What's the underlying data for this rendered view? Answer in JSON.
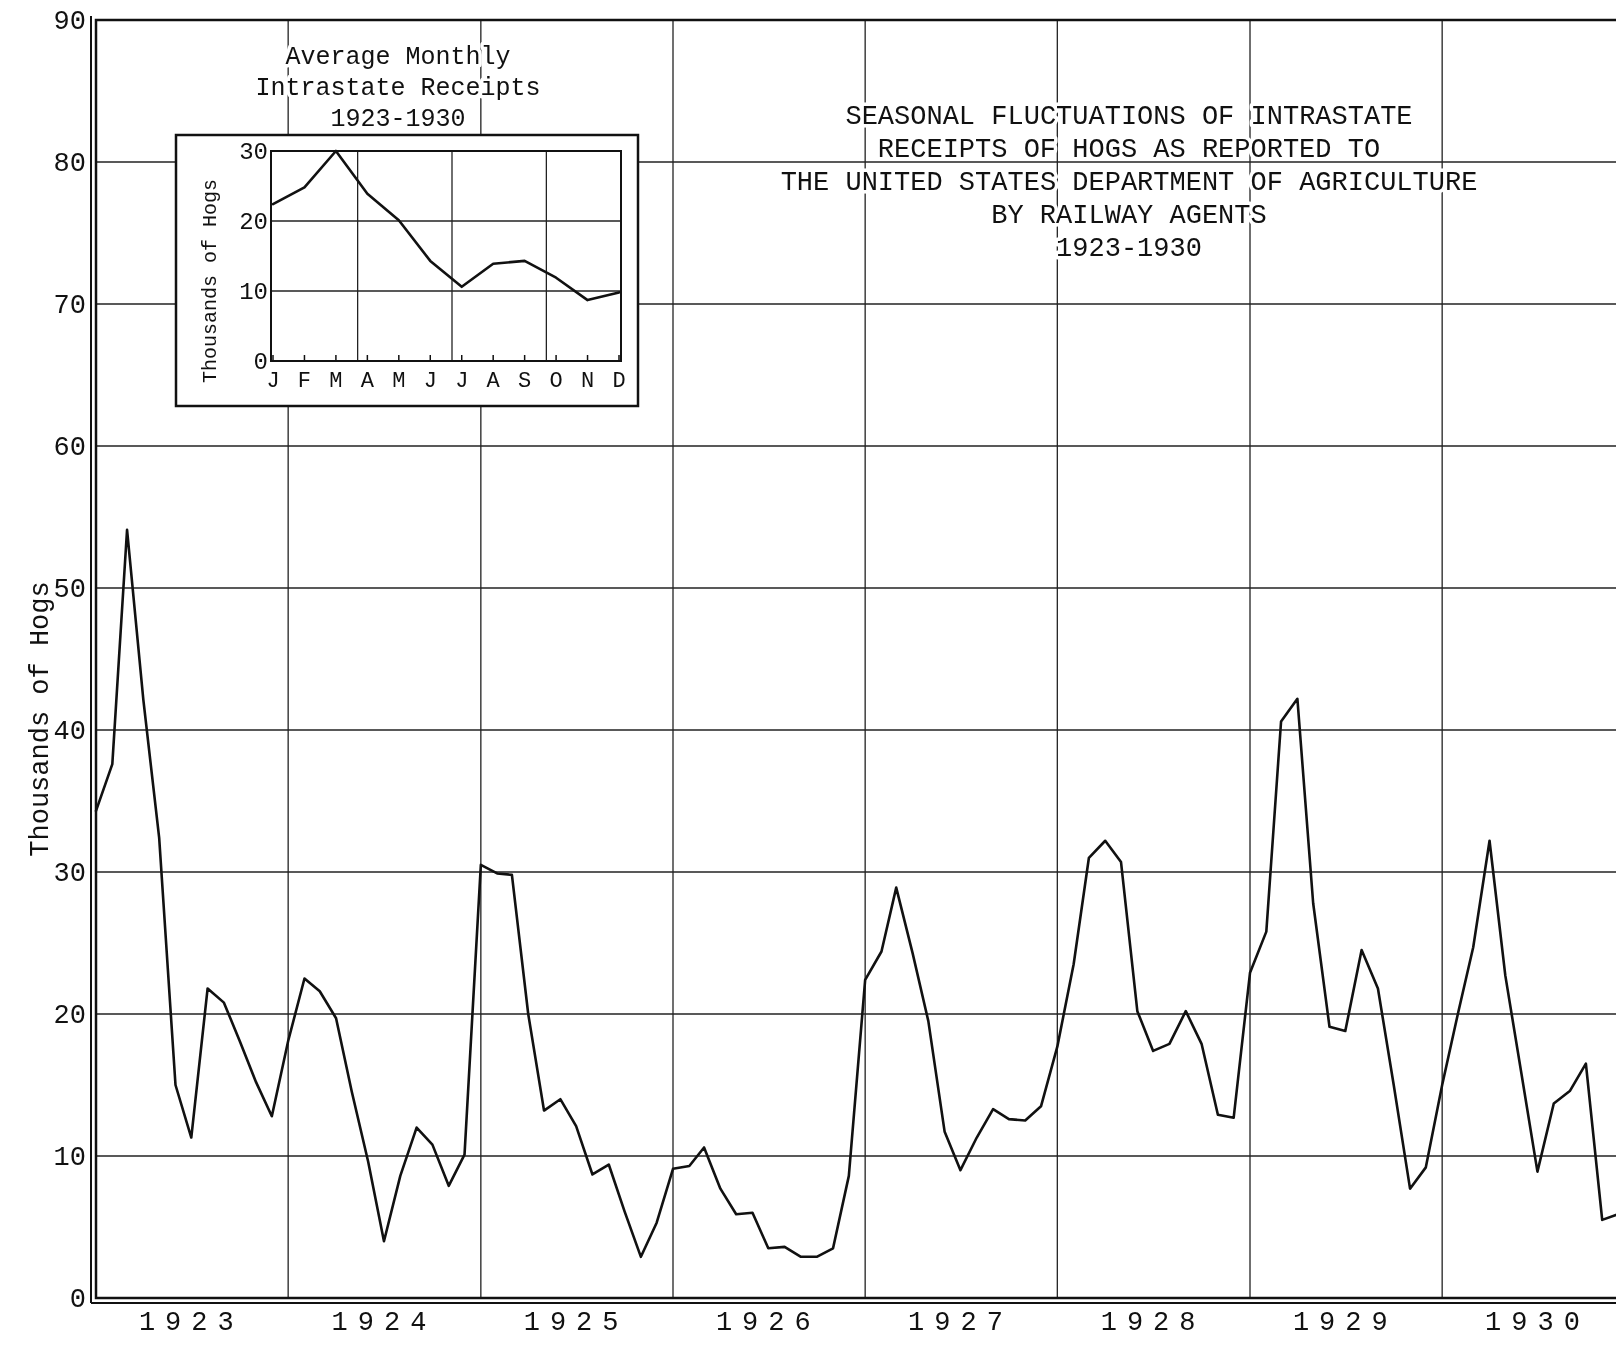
{
  "chart_data": [
    {
      "type": "line",
      "title": "SEASONAL FLUCTUATIONS OF INTRASTATE\nRECEIPTS OF HOGS AS REPORTED TO\nTHE UNITED STATES DEPARTMENT OF AGRICULTURE\nBY RAILWAY AGENTS\n1923-1930",
      "ylabel": "Thousands of Hogs",
      "x": [
        "1923-01",
        "1923-02",
        "1923-03",
        "1923-04",
        "1923-05",
        "1923-06",
        "1923-07",
        "1923-08",
        "1923-09",
        "1923-10",
        "1923-11",
        "1923-12",
        "1924-01",
        "1924-02",
        "1924-03",
        "1924-04",
        "1924-05",
        "1924-06",
        "1924-07",
        "1924-08",
        "1924-09",
        "1924-10",
        "1924-11",
        "1924-12",
        "1925-01",
        "1925-02",
        "1925-03",
        "1925-04",
        "1925-05",
        "1925-06",
        "1925-07",
        "1925-08",
        "1925-09",
        "1925-10",
        "1925-11",
        "1925-12",
        "1926-01",
        "1926-02",
        "1926-03",
        "1926-04",
        "1926-05",
        "1926-06",
        "1926-07",
        "1926-08",
        "1926-09",
        "1926-10",
        "1926-11",
        "1926-12",
        "1927-01",
        "1927-02",
        "1927-03",
        "1927-04",
        "1927-05",
        "1927-06",
        "1927-07",
        "1927-08",
        "1927-09",
        "1927-10",
        "1927-11",
        "1927-12",
        "1928-01",
        "1928-02",
        "1928-03",
        "1928-04",
        "1928-05",
        "1928-06",
        "1928-07",
        "1928-08",
        "1928-09",
        "1928-10",
        "1928-11",
        "1928-12",
        "1929-01",
        "1929-02",
        "1929-03",
        "1929-04",
        "1929-05",
        "1929-06",
        "1929-07",
        "1929-08",
        "1929-09",
        "1929-10",
        "1929-11",
        "1929-12",
        "1930-01",
        "1930-02",
        "1930-03",
        "1930-04",
        "1930-05",
        "1930-06",
        "1930-07",
        "1930-08",
        "1930-09",
        "1930-10",
        "1930-11",
        "1930-12"
      ],
      "series": [
        {
          "color": "#111111",
          "values": [
            34.3,
            37.6,
            54.1,
            42.1,
            32.4,
            15.0,
            11.3,
            21.8,
            20.8,
            18.1,
            15.2,
            12.8,
            18.1,
            22.5,
            21.6,
            19.7,
            14.5,
            9.6,
            4.0,
            8.6,
            12.0,
            10.8,
            7.9,
            10.1,
            30.5,
            29.9,
            29.8,
            20.0,
            13.2,
            14.0,
            12.1,
            8.7,
            9.4,
            6.1,
            2.9,
            5.3,
            9.1,
            9.3,
            10.6,
            7.7,
            5.9,
            6.0,
            3.5,
            3.6,
            2.9,
            2.9,
            3.5,
            8.6,
            22.4,
            24.4,
            28.9,
            24.3,
            19.5,
            11.7,
            9.0,
            11.3,
            13.3,
            12.6,
            12.5,
            13.5,
            17.7,
            23.5,
            31.0,
            32.2,
            30.7,
            20.2,
            17.4,
            17.9,
            20.2,
            17.9,
            12.9,
            12.7,
            22.9,
            25.8,
            40.6,
            42.2,
            27.8,
            19.1,
            18.8,
            24.5,
            21.8,
            15.0,
            7.7,
            9.2,
            15.0,
            20.2,
            24.7,
            32.2,
            22.7,
            15.7,
            8.9,
            13.7,
            14.6,
            16.5,
            5.5,
            5.9
          ]
        }
      ],
      "xlim": [
        "1923-01",
        "1930-12"
      ],
      "xticks": [
        {
          "value": "1923-07",
          "label": "1923"
        },
        {
          "value": "1924-01",
          "label": null
        },
        {
          "value": "1924-07",
          "label": "1924"
        },
        {
          "value": "1925-01",
          "label": null
        },
        {
          "value": "1925-07",
          "label": "1925"
        },
        {
          "value": "1926-01",
          "label": null
        },
        {
          "value": "1926-07",
          "label": "1926"
        },
        {
          "value": "1927-01",
          "label": null
        },
        {
          "value": "1927-07",
          "label": "1927"
        },
        {
          "value": "1928-01",
          "label": null
        },
        {
          "value": "1928-07",
          "label": "1928"
        },
        {
          "value": "1929-01",
          "label": null
        },
        {
          "value": "1929-07",
          "label": "1929"
        },
        {
          "value": "1930-01",
          "label": null
        },
        {
          "value": "1930-07",
          "label": "1930"
        }
      ],
      "ylim": [
        0,
        90
      ],
      "yticks": [
        0,
        10,
        20,
        30,
        40,
        50,
        60,
        70,
        80,
        90
      ],
      "grid": true,
      "marker": "none",
      "line_style": "solid"
    },
    {
      "type": "line",
      "title": "Average Monthly\nIntrastate Receipts\n1923-1930",
      "ylabel": "Thousands of Hogs",
      "categories": [
        "J",
        "F",
        "M",
        "A",
        "M",
        "J",
        "J",
        "A",
        "S",
        "O",
        "N",
        "D"
      ],
      "series": [
        {
          "color": "#111111",
          "values": [
            22.4,
            24.8,
            30.0,
            23.9,
            20.1,
            14.3,
            10.6,
            13.9,
            14.3,
            11.9,
            8.7,
            9.8
          ]
        }
      ],
      "ylim": [
        0,
        30
      ],
      "yticks": [
        0,
        10,
        20,
        30
      ],
      "grid": true,
      "marker": "none",
      "line_style": "solid"
    }
  ]
}
